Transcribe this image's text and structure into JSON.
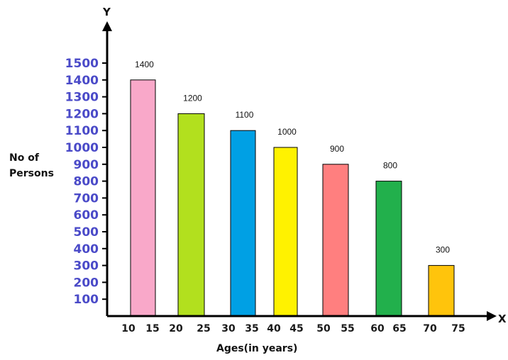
{
  "chart_data": {
    "type": "bar",
    "categories": [
      "10 15",
      "20 25",
      "30 35",
      "40 45",
      "50 55",
      "60 65",
      "70 75"
    ],
    "values": [
      1400,
      1200,
      1100,
      1000,
      900,
      800,
      300
    ],
    "data_labels": [
      "1400",
      "1200",
      "1100",
      "1000",
      "900",
      "800",
      "300"
    ],
    "colors": [
      "#f9a8c9",
      "#b2e01e",
      "#00a0e4",
      "#fff200",
      "#ff7f7f",
      "#22b04c",
      "#ffc40c"
    ],
    "x_tick_labels": [
      "10",
      "15",
      "20",
      "25",
      "30",
      "35",
      "40",
      "45",
      "50",
      "55",
      "60",
      "65",
      "70",
      "75"
    ],
    "y_ticks": [
      100,
      200,
      300,
      400,
      500,
      600,
      700,
      800,
      900,
      1000,
      1100,
      1200,
      1300,
      1400,
      1500
    ],
    "y_axis_letter": "Y",
    "x_axis_letter": "X",
    "ylabel": "No of Persons",
    "xlabel": "Ages(in years)",
    "grid": false,
    "legend": "none"
  }
}
